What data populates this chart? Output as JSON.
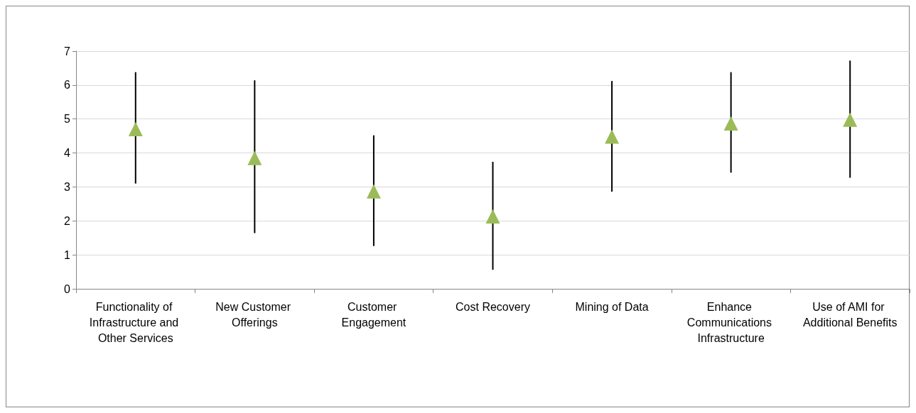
{
  "chart_data": {
    "type": "scatter",
    "categories": [
      "Functionality of Infrastructure and Other Services",
      "New Customer Offerings",
      "Customer Engagement",
      "Cost Recovery",
      "Mining of Data",
      "Enhance Communications Infrastructure",
      "Use of AMI for Additional Benefits"
    ],
    "series": [
      {
        "color": "#9bbb59",
        "values": [
          4.7,
          3.85,
          2.87,
          2.13,
          4.48,
          4.87,
          4.98
        ],
        "errors": [
          [
            3.1,
            6.38
          ],
          [
            1.64,
            6.14
          ],
          [
            1.26,
            4.52
          ],
          [
            0.56,
            3.74
          ],
          [
            2.86,
            6.12
          ],
          [
            3.42,
            6.38
          ],
          [
            3.27,
            6.72
          ]
        ]
      }
    ],
    "ylim": [
      0,
      7
    ],
    "yticks": [
      0,
      1,
      2,
      3,
      4,
      5,
      6,
      7
    ],
    "grid": "y",
    "marker": "triangle"
  }
}
